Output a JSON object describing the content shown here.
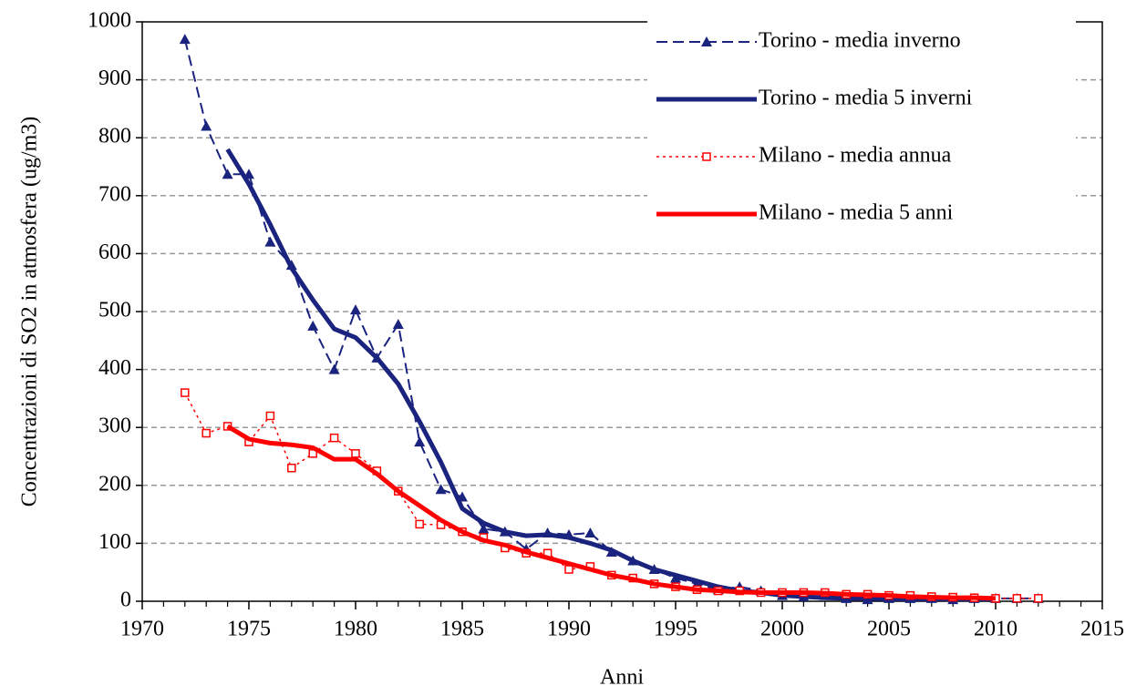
{
  "chart_data": {
    "type": "line",
    "xlabel": "Anni",
    "ylabel": "Concentrazioni di SO2 in atmosfera (ug/m3)",
    "xlim": [
      1970,
      2015
    ],
    "xticks": [
      1970,
      1975,
      1980,
      1985,
      1990,
      1995,
      2000,
      2005,
      2010,
      2015
    ],
    "ylim": [
      0,
      1000
    ],
    "yticks": [
      0,
      100,
      200,
      300,
      400,
      500,
      600,
      700,
      800,
      900,
      1000
    ],
    "grid": true,
    "legend": "upper right",
    "series": [
      {
        "name": "Torino - media inverno",
        "color": "#1a237e",
        "dash": "dashed",
        "marker": "triangle",
        "width": 2,
        "x": [
          1972,
          1973,
          1974,
          1975,
          1976,
          1977,
          1978,
          1979,
          1980,
          1981,
          1982,
          1983,
          1984,
          1985,
          1986,
          1987,
          1988,
          1989,
          1990,
          1991,
          1992,
          1993,
          1994,
          1995,
          1996,
          1997,
          1998,
          1999,
          2000,
          2001,
          2002,
          2003,
          2004,
          2005,
          2006,
          2007,
          2008,
          2009,
          2010,
          2011,
          2012
        ],
        "values": [
          970,
          820,
          737,
          737,
          620,
          580,
          475,
          400,
          503,
          420,
          478,
          275,
          193,
          180,
          125,
          120,
          90,
          118,
          115,
          118,
          85,
          70,
          55,
          40,
          30,
          20,
          25,
          18,
          10,
          8,
          10,
          5,
          3,
          5,
          5,
          5,
          3,
          5,
          5,
          5,
          5
        ]
      },
      {
        "name": "Torino - media 5 inverni",
        "color": "#1a237e",
        "dash": "solid",
        "marker": "none",
        "width": 5,
        "x": [
          1974,
          1975,
          1976,
          1977,
          1978,
          1979,
          1980,
          1981,
          1982,
          1983,
          1984,
          1985,
          1986,
          1987,
          1988,
          1989,
          1990,
          1991,
          1992,
          1993,
          1994,
          1995,
          1996,
          1997,
          1998,
          1999,
          2000,
          2001,
          2002,
          2003,
          2004,
          2005,
          2006,
          2007,
          2008,
          2009,
          2010
        ],
        "values": [
          780,
          720,
          650,
          575,
          520,
          470,
          455,
          420,
          375,
          310,
          240,
          160,
          135,
          120,
          113,
          115,
          110,
          100,
          88,
          70,
          55,
          45,
          35,
          25,
          18,
          15,
          10,
          8,
          6,
          5,
          5,
          4,
          4,
          4,
          4,
          4,
          4
        ]
      },
      {
        "name": "Milano - media annua",
        "color": "#ff0000",
        "dash": "dotted",
        "marker": "square",
        "width": 1.5,
        "x": [
          1972,
          1973,
          1974,
          1975,
          1976,
          1977,
          1978,
          1979,
          1980,
          1981,
          1982,
          1983,
          1984,
          1985,
          1986,
          1987,
          1988,
          1989,
          1990,
          1991,
          1992,
          1993,
          1994,
          1995,
          1996,
          1997,
          1998,
          1999,
          2000,
          2001,
          2002,
          2003,
          2004,
          2005,
          2006,
          2007,
          2008,
          2009,
          2010,
          2011,
          2012
        ],
        "values": [
          360,
          290,
          302,
          275,
          320,
          230,
          255,
          282,
          255,
          225,
          190,
          133,
          132,
          120,
          110,
          92,
          83,
          83,
          55,
          60,
          45,
          40,
          30,
          25,
          20,
          18,
          18,
          15,
          15,
          15,
          15,
          12,
          12,
          10,
          10,
          8,
          7,
          6,
          5,
          5,
          5
        ]
      },
      {
        "name": "Milano - media 5 anni",
        "color": "#ff0000",
        "dash": "solid",
        "marker": "none",
        "width": 5,
        "x": [
          1974,
          1975,
          1976,
          1977,
          1978,
          1979,
          1980,
          1981,
          1982,
          1983,
          1984,
          1985,
          1986,
          1987,
          1988,
          1989,
          1990,
          1991,
          1992,
          1993,
          1994,
          1995,
          1996,
          1997,
          1998,
          1999,
          2000,
          2001,
          2002,
          2003,
          2004,
          2005,
          2006,
          2007,
          2008,
          2009,
          2010
        ],
        "values": [
          302,
          280,
          273,
          270,
          265,
          245,
          245,
          220,
          190,
          165,
          140,
          120,
          105,
          97,
          85,
          75,
          65,
          55,
          45,
          38,
          30,
          25,
          20,
          18,
          16,
          15,
          15,
          15,
          14,
          12,
          11,
          10,
          8,
          7,
          6,
          6,
          5
        ]
      }
    ]
  }
}
